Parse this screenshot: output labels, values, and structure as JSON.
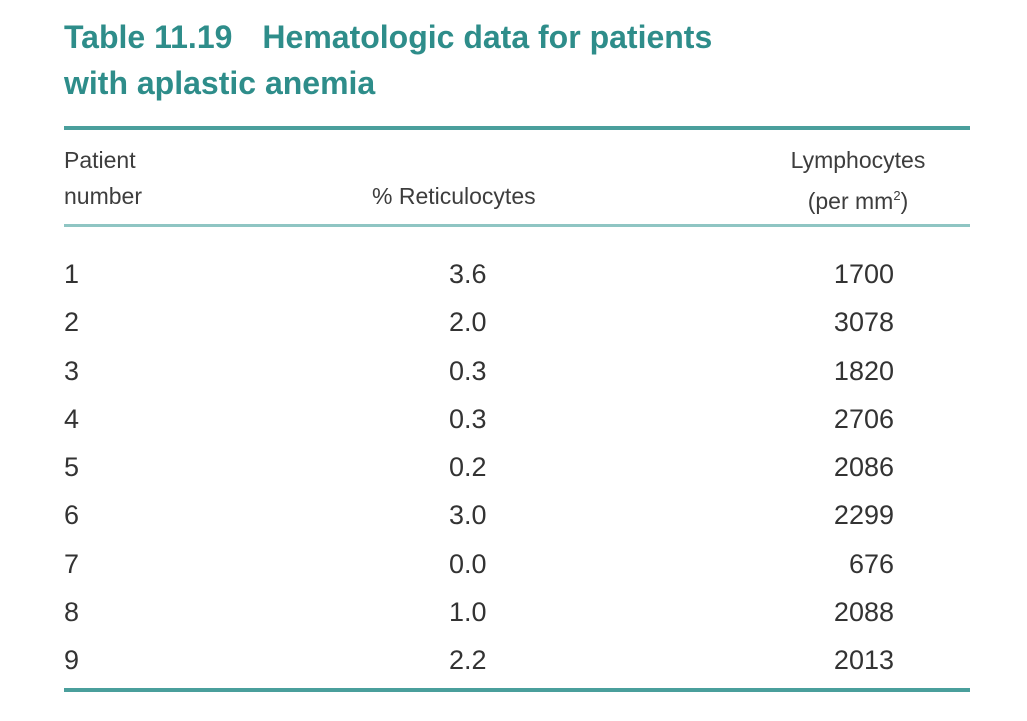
{
  "table": {
    "number": "Table 11.19",
    "title_line1": "Hematologic data for patients",
    "title_line2": "with aplastic anemia",
    "headers": {
      "patient_line1": "Patient",
      "patient_line2": "number",
      "reticulocytes": "% Reticulocytes",
      "lymph_line1": "Lymphocytes",
      "lymph_line2_pre": "(per mm",
      "lymph_line2_sup": "2",
      "lymph_line2_post": ")"
    },
    "rows": [
      {
        "patient": "1",
        "reticulocytes": "3.6",
        "lymphocytes": "1700"
      },
      {
        "patient": "2",
        "reticulocytes": "2.0",
        "lymphocytes": "3078"
      },
      {
        "patient": "3",
        "reticulocytes": "0.3",
        "lymphocytes": "1820"
      },
      {
        "patient": "4",
        "reticulocytes": "0.3",
        "lymphocytes": "2706"
      },
      {
        "patient": "5",
        "reticulocytes": "0.2",
        "lymphocytes": "2086"
      },
      {
        "patient": "6",
        "reticulocytes": "3.0",
        "lymphocytes": "2299"
      },
      {
        "patient": "7",
        "reticulocytes": "0.0",
        "lymphocytes": "676"
      },
      {
        "patient": "8",
        "reticulocytes": "1.0",
        "lymphocytes": "2088"
      },
      {
        "patient": "9",
        "reticulocytes": "2.2",
        "lymphocytes": "2013"
      }
    ]
  },
  "colors": {
    "title": "#2e8d8a",
    "rule": "#4a9f9c"
  }
}
